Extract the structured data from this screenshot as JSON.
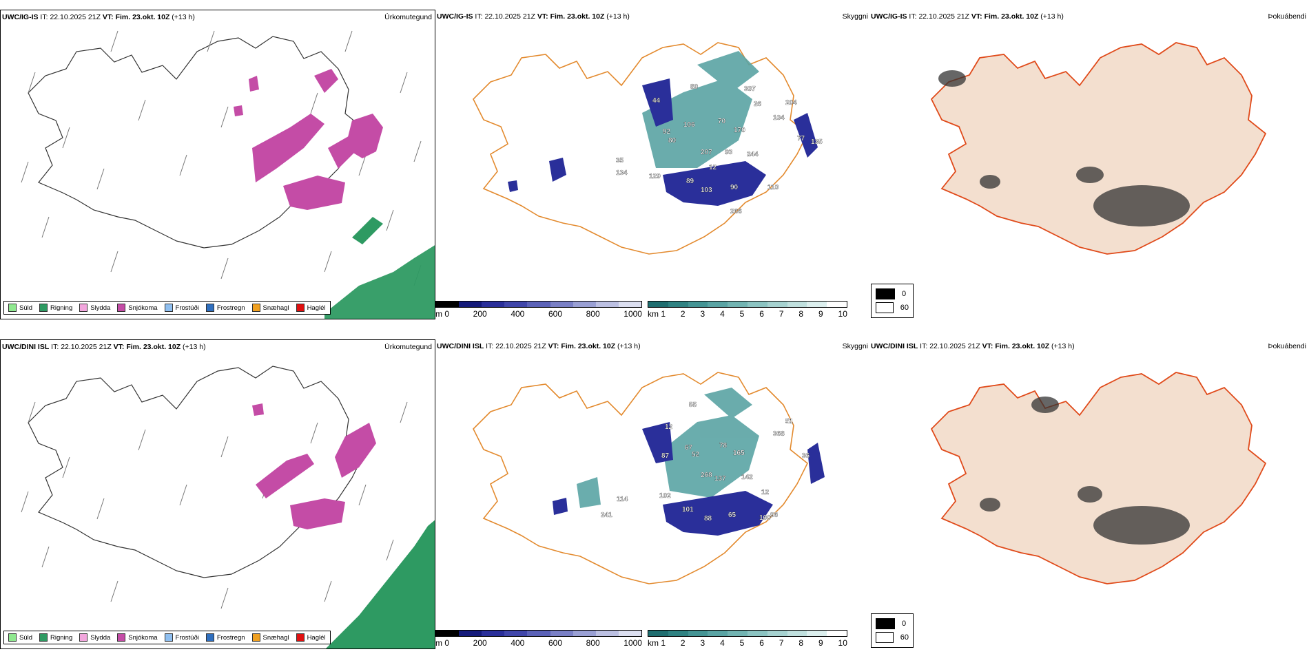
{
  "rows": [
    {
      "model": "UWC/IG-IS",
      "it_label": "IT:",
      "it": "22.10.2025 21Z",
      "vt_label": "VT:",
      "vt": "Fim. 23.okt. 10Z",
      "lead": "(+13 h)"
    },
    {
      "model": "UWC/DINI ISL",
      "it_label": "IT:",
      "it": "22.10.2025 21Z",
      "vt_label": "VT:",
      "vt": "Fim. 23.okt. 10Z",
      "lead": "(+13 h)"
    }
  ],
  "titles": {
    "precip": "Úrkomutegund",
    "cloud": "Skyggni",
    "fog": "Þokuábendi"
  },
  "precip_legend": [
    {
      "label": "Súld",
      "color": "#8fe88f"
    },
    {
      "label": "Rigning",
      "color": "#2e9a62"
    },
    {
      "label": "Slydda",
      "color": "#f2a6dd"
    },
    {
      "label": "Snjókoma",
      "color": "#c44ca6"
    },
    {
      "label": "Frostúði",
      "color": "#8fbff0"
    },
    {
      "label": "Frostregn",
      "color": "#2f6fbf"
    },
    {
      "label": "Snæhagl",
      "color": "#f0a020"
    },
    {
      "label": "Haglél",
      "color": "#e01010"
    }
  ],
  "height_scale": {
    "unit": "m",
    "ticks": [
      "0",
      "200",
      "400",
      "600",
      "800",
      "1000"
    ],
    "colors": [
      "#000000",
      "#141a7a",
      "#2a2f9a",
      "#4046aa",
      "#5b62b8",
      "#7a80c6",
      "#9aa0d4",
      "#bcc0e2",
      "#dcdff0"
    ]
  },
  "km_scale": {
    "unit": "km",
    "ticks": [
      "1",
      "2",
      "3",
      "4",
      "5",
      "6",
      "7",
      "8",
      "9",
      "10"
    ],
    "colors": [
      "#1f6e70",
      "#2f8282",
      "#449494",
      "#5aa4a4",
      "#72b4b2",
      "#8cc4c2",
      "#a6d2d0",
      "#c0e0de",
      "#dcefee",
      "#ffffff"
    ]
  },
  "fog_scale": {
    "values": [
      "0",
      "60"
    ]
  },
  "labels_top": [
    {
      "t": "307"
    },
    {
      "t": "80"
    },
    {
      "t": "44"
    },
    {
      "t": "92"
    },
    {
      "t": "80"
    },
    {
      "t": "106"
    },
    {
      "t": "70"
    },
    {
      "t": "170"
    },
    {
      "t": "104"
    },
    {
      "t": "26"
    },
    {
      "t": "204"
    },
    {
      "t": "77"
    },
    {
      "t": "135"
    },
    {
      "t": "207"
    },
    {
      "t": "93"
    },
    {
      "t": "244"
    },
    {
      "t": "89"
    },
    {
      "t": "103"
    },
    {
      "t": "90"
    },
    {
      "t": "110"
    },
    {
      "t": "266"
    },
    {
      "t": "134"
    },
    {
      "t": "129"
    },
    {
      "t": "35"
    },
    {
      "t": "12"
    }
  ],
  "labels_bottom": [
    {
      "t": "55"
    },
    {
      "t": "12"
    },
    {
      "t": "87"
    },
    {
      "t": "67"
    },
    {
      "t": "52"
    },
    {
      "t": "78"
    },
    {
      "t": "165"
    },
    {
      "t": "368"
    },
    {
      "t": "51"
    },
    {
      "t": "268"
    },
    {
      "t": "137"
    },
    {
      "t": "142"
    },
    {
      "t": "102"
    },
    {
      "t": "114"
    },
    {
      "t": "241"
    },
    {
      "t": "101"
    },
    {
      "t": "88"
    },
    {
      "t": "65"
    },
    {
      "t": "100"
    },
    {
      "t": "96"
    },
    {
      "t": "12"
    },
    {
      "t": "36"
    }
  ]
}
